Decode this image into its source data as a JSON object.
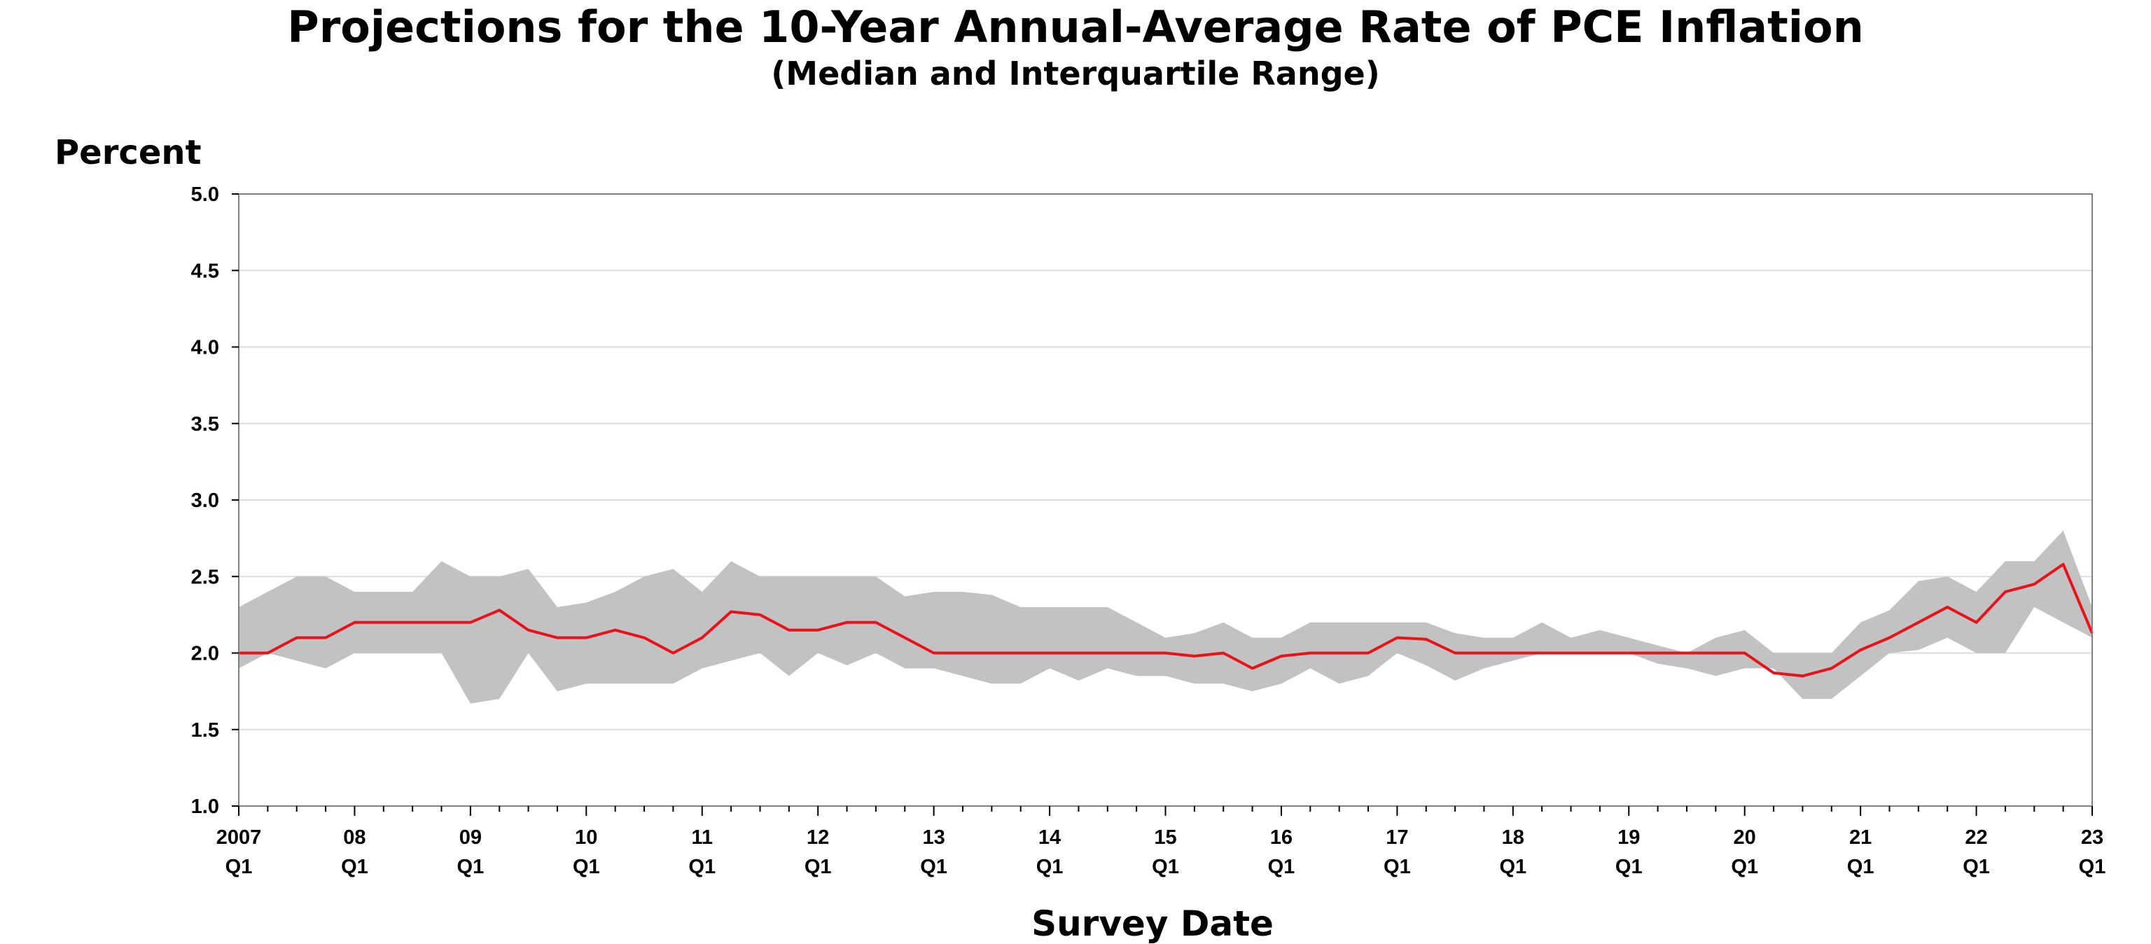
{
  "chart_data": {
    "type": "area",
    "title": "Projections for the 10-Year Annual-Average Rate of PCE Inflation",
    "subtitle": "(Median and Interquartile Range)",
    "ylabel": "Percent",
    "xlabel": "Survey Date",
    "ylim": [
      1.0,
      5.0
    ],
    "yticks": [
      "1.0",
      "1.5",
      "2.0",
      "2.5",
      "3.0",
      "3.5",
      "4.0",
      "4.5",
      "5.0"
    ],
    "xtick_labels": [
      {
        "year": "2007",
        "quarter": "Q1"
      },
      {
        "year": "08",
        "quarter": "Q1"
      },
      {
        "year": "09",
        "quarter": "Q1"
      },
      {
        "year": "10",
        "quarter": "Q1"
      },
      {
        "year": "11",
        "quarter": "Q1"
      },
      {
        "year": "12",
        "quarter": "Q1"
      },
      {
        "year": "13",
        "quarter": "Q1"
      },
      {
        "year": "14",
        "quarter": "Q1"
      },
      {
        "year": "15",
        "quarter": "Q1"
      },
      {
        "year": "16",
        "quarter": "Q1"
      },
      {
        "year": "17",
        "quarter": "Q1"
      },
      {
        "year": "18",
        "quarter": "Q1"
      },
      {
        "year": "19",
        "quarter": "Q1"
      },
      {
        "year": "20",
        "quarter": "Q1"
      },
      {
        "year": "21",
        "quarter": "Q1"
      },
      {
        "year": "22",
        "quarter": "Q1"
      },
      {
        "year": "23",
        "quarter": "Q1"
      }
    ],
    "x": [
      "2007 Q1",
      "2007 Q2",
      "2007 Q3",
      "2007 Q4",
      "2008 Q1",
      "2008 Q2",
      "2008 Q3",
      "2008 Q4",
      "2009 Q1",
      "2009 Q2",
      "2009 Q3",
      "2009 Q4",
      "2010 Q1",
      "2010 Q2",
      "2010 Q3",
      "2010 Q4",
      "2011 Q1",
      "2011 Q2",
      "2011 Q3",
      "2011 Q4",
      "2012 Q1",
      "2012 Q2",
      "2012 Q3",
      "2012 Q4",
      "2013 Q1",
      "2013 Q2",
      "2013 Q3",
      "2013 Q4",
      "2014 Q1",
      "2014 Q2",
      "2014 Q3",
      "2014 Q4",
      "2015 Q1",
      "2015 Q2",
      "2015 Q3",
      "2015 Q4",
      "2016 Q1",
      "2016 Q2",
      "2016 Q3",
      "2016 Q4",
      "2017 Q1",
      "2017 Q2",
      "2017 Q3",
      "2017 Q4",
      "2018 Q1",
      "2018 Q2",
      "2018 Q3",
      "2018 Q4",
      "2019 Q1",
      "2019 Q2",
      "2019 Q3",
      "2019 Q4",
      "2020 Q1",
      "2020 Q2",
      "2020 Q3",
      "2020 Q4",
      "2021 Q1",
      "2021 Q2",
      "2021 Q3",
      "2021 Q4",
      "2022 Q1",
      "2022 Q2",
      "2022 Q3",
      "2022 Q4",
      "2023 Q1"
    ],
    "series": [
      {
        "role": "median",
        "color": "#e8121a",
        "values": [
          2.0,
          2.0,
          2.1,
          2.1,
          2.2,
          2.2,
          2.2,
          2.2,
          2.2,
          2.28,
          2.15,
          2.1,
          2.1,
          2.15,
          2.1,
          2.0,
          2.1,
          2.27,
          2.25,
          2.15,
          2.15,
          2.2,
          2.2,
          2.1,
          2.0,
          2.0,
          2.0,
          2.0,
          2.0,
          2.0,
          2.0,
          2.0,
          2.0,
          1.98,
          2.0,
          1.9,
          1.98,
          2.0,
          2.0,
          2.0,
          2.1,
          2.09,
          2.0,
          2.0,
          2.0,
          2.0,
          2.0,
          2.0,
          2.0,
          2.0,
          2.0,
          2.0,
          2.0,
          1.87,
          1.85,
          1.9,
          2.02,
          2.1,
          2.2,
          2.3,
          2.2,
          2.4,
          2.45,
          2.58,
          2.13
        ]
      },
      {
        "role": "upper-quartile",
        "color": "#c2c2c2",
        "values": [
          2.3,
          2.4,
          2.5,
          2.5,
          2.4,
          2.4,
          2.4,
          2.6,
          2.5,
          2.5,
          2.55,
          2.3,
          2.33,
          2.4,
          2.5,
          2.55,
          2.4,
          2.6,
          2.5,
          2.5,
          2.5,
          2.5,
          2.5,
          2.37,
          2.4,
          2.4,
          2.38,
          2.3,
          2.3,
          2.3,
          2.3,
          2.2,
          2.1,
          2.13,
          2.2,
          2.1,
          2.1,
          2.2,
          2.2,
          2.2,
          2.2,
          2.2,
          2.13,
          2.1,
          2.1,
          2.2,
          2.1,
          2.15,
          2.1,
          2.05,
          2.0,
          2.1,
          2.15,
          2.0,
          2.0,
          2.0,
          2.2,
          2.28,
          2.47,
          2.5,
          2.4,
          2.6,
          2.6,
          2.8,
          2.3
        ]
      },
      {
        "role": "lower-quartile",
        "color": "#c2c2c2",
        "values": [
          1.9,
          2.0,
          1.95,
          1.9,
          2.0,
          2.0,
          2.0,
          2.0,
          1.67,
          1.7,
          2.0,
          1.75,
          1.8,
          1.8,
          1.8,
          1.8,
          1.9,
          1.95,
          2.0,
          1.85,
          2.0,
          1.92,
          2.0,
          1.9,
          1.9,
          1.85,
          1.8,
          1.8,
          1.9,
          1.82,
          1.9,
          1.85,
          1.85,
          1.8,
          1.8,
          1.75,
          1.8,
          1.9,
          1.8,
          1.85,
          2.0,
          1.92,
          1.82,
          1.9,
          1.95,
          2.0,
          2.0,
          2.0,
          2.0,
          1.93,
          1.9,
          1.85,
          1.9,
          1.9,
          1.7,
          1.7,
          1.85,
          2.0,
          2.02,
          2.1,
          2.0,
          2.0,
          2.3,
          2.2,
          2.1
        ]
      }
    ],
    "grid": true,
    "legend": "none"
  }
}
